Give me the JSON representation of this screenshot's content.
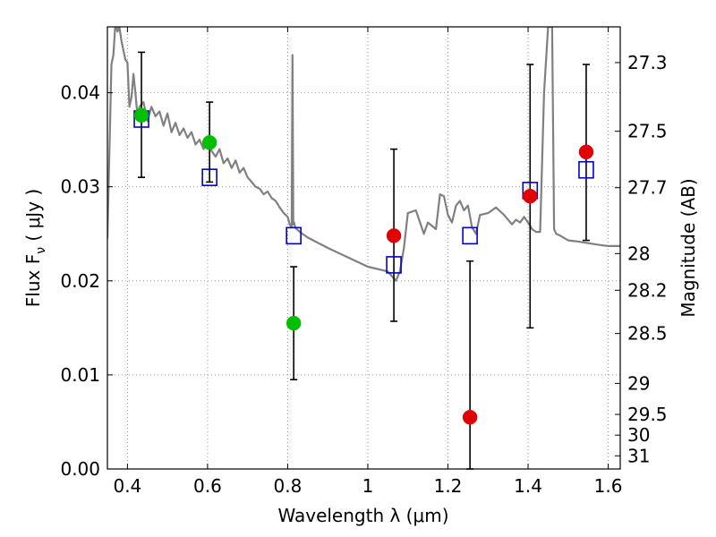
{
  "chart_data": {
    "type": "scatter",
    "xlabel": "Wavelength  λ (μm)",
    "ylabel": "Flux  F",
    "ylabel_sub": "ν",
    "ylabel_unit": " ( μJy )",
    "ylabel_right": "Magnitude (AB)",
    "xlim": [
      0.35,
      1.63
    ],
    "ylim": [
      0.0,
      0.047
    ],
    "grid": true,
    "x_ticks": [
      {
        "value": 0.4,
        "label": "0.4"
      },
      {
        "value": 0.6,
        "label": "0.6"
      },
      {
        "value": 0.8,
        "label": "0.8"
      },
      {
        "value": 1.0,
        "label": "1"
      },
      {
        "value": 1.2,
        "label": "1.2"
      },
      {
        "value": 1.4,
        "label": "1.4"
      },
      {
        "value": 1.6,
        "label": "1.6"
      }
    ],
    "y_ticks": [
      {
        "value": 0.0,
        "label": "0.00"
      },
      {
        "value": 0.01,
        "label": "0.01"
      },
      {
        "value": 0.02,
        "label": "0.02"
      },
      {
        "value": 0.03,
        "label": "0.03"
      },
      {
        "value": 0.04,
        "label": "0.04"
      }
    ],
    "magnitude_ticks": [
      {
        "flux": 0.0432,
        "label": "27.3"
      },
      {
        "flux": 0.0359,
        "label": "27.5"
      },
      {
        "flux": 0.0299,
        "label": "27.7"
      },
      {
        "flux": 0.0229,
        "label": "28"
      },
      {
        "flux": 0.019,
        "label": "28.2"
      },
      {
        "flux": 0.0144,
        "label": "28.5"
      },
      {
        "flux": 0.0091,
        "label": "29"
      },
      {
        "flux": 0.0058,
        "label": "29.5"
      },
      {
        "flux": 0.0036,
        "label": "30"
      },
      {
        "flux": 0.0014,
        "label": "31"
      }
    ],
    "colors": {
      "sed": "#808080",
      "model": "#0000cc",
      "green": "#00bf00",
      "red": "#e00000",
      "errorbar": "#000000",
      "grid": "#999999"
    },
    "sed_curve": {
      "x": [
        0.35,
        0.36,
        0.365,
        0.37,
        0.375,
        0.38,
        0.385,
        0.39,
        0.395,
        0.4,
        0.405,
        0.41,
        0.415,
        0.42,
        0.425,
        0.43,
        0.44,
        0.45,
        0.46,
        0.47,
        0.48,
        0.49,
        0.5,
        0.51,
        0.52,
        0.53,
        0.54,
        0.55,
        0.56,
        0.57,
        0.58,
        0.59,
        0.6,
        0.61,
        0.62,
        0.63,
        0.64,
        0.65,
        0.66,
        0.67,
        0.68,
        0.69,
        0.7,
        0.71,
        0.72,
        0.73,
        0.74,
        0.75,
        0.76,
        0.77,
        0.78,
        0.79,
        0.8,
        0.805,
        0.81,
        0.812,
        0.814,
        0.816,
        0.818,
        0.82,
        0.83,
        0.85,
        0.9,
        0.95,
        1.0,
        1.05,
        1.06,
        1.07,
        1.08,
        1.09,
        1.1,
        1.12,
        1.14,
        1.15,
        1.17,
        1.18,
        1.19,
        1.2,
        1.21,
        1.22,
        1.23,
        1.24,
        1.25,
        1.26,
        1.27,
        1.28,
        1.3,
        1.32,
        1.34,
        1.36,
        1.37,
        1.38,
        1.39,
        1.4,
        1.41,
        1.42,
        1.43,
        1.44,
        1.45,
        1.46,
        1.465,
        1.47,
        1.48,
        1.5,
        1.52,
        1.55,
        1.58,
        1.6,
        1.63
      ],
      "y": [
        0.0245,
        0.043,
        0.044,
        0.0475,
        0.0465,
        0.047,
        0.0455,
        0.0445,
        0.0435,
        0.0432,
        0.0385,
        0.0395,
        0.042,
        0.04,
        0.0375,
        0.0385,
        0.039,
        0.037,
        0.0385,
        0.0375,
        0.038,
        0.0365,
        0.0378,
        0.0358,
        0.0368,
        0.0355,
        0.0362,
        0.0352,
        0.0358,
        0.0345,
        0.035,
        0.034,
        0.0348,
        0.0338,
        0.0332,
        0.034,
        0.0325,
        0.033,
        0.032,
        0.0328,
        0.0315,
        0.032,
        0.031,
        0.0305,
        0.03,
        0.0298,
        0.0292,
        0.0295,
        0.0288,
        0.0285,
        0.0278,
        0.0272,
        0.0268,
        0.026,
        0.0257,
        0.044,
        0.026,
        0.0262,
        0.0258,
        0.0256,
        0.0252,
        0.0246,
        0.0235,
        0.0225,
        0.0215,
        0.021,
        0.0205,
        0.02,
        0.021,
        0.0235,
        0.0272,
        0.0275,
        0.025,
        0.0262,
        0.0255,
        0.0292,
        0.029,
        0.027,
        0.0262,
        0.028,
        0.0285,
        0.0275,
        0.028,
        0.0257,
        0.025,
        0.027,
        0.0272,
        0.0278,
        0.027,
        0.026,
        0.0265,
        0.0262,
        0.0268,
        0.0262,
        0.0255,
        0.0252,
        0.0252,
        0.04,
        0.047,
        0.047,
        0.0255,
        0.025,
        0.0248,
        0.0243,
        0.0242,
        0.024,
        0.0238,
        0.0237,
        0.0237
      ]
    },
    "series": [
      {
        "marker": "open-square",
        "points": [
          {
            "x": 0.435,
            "y": 0.0372
          },
          {
            "x": 0.605,
            "y": 0.031
          },
          {
            "x": 0.815,
            "y": 0.0248
          },
          {
            "x": 1.065,
            "y": 0.0217
          },
          {
            "x": 1.255,
            "y": 0.0248
          },
          {
            "x": 1.405,
            "y": 0.0296
          },
          {
            "x": 1.545,
            "y": 0.0318
          }
        ]
      },
      {
        "marker": "green-circle",
        "points": [
          {
            "x": 0.435,
            "y": 0.0376,
            "lo": 0.031,
            "hi": 0.0443
          },
          {
            "x": 0.605,
            "y": 0.0347,
            "lo": 0.0305,
            "hi": 0.039
          },
          {
            "x": 0.815,
            "y": 0.0155,
            "lo": 0.0095,
            "hi": 0.0215
          }
        ]
      },
      {
        "marker": "red-circle",
        "points": [
          {
            "x": 1.065,
            "y": 0.0248,
            "lo": 0.0157,
            "hi": 0.034
          },
          {
            "x": 1.255,
            "y": 0.0055,
            "lo": 0.0,
            "hi": 0.0221
          },
          {
            "x": 1.405,
            "y": 0.029,
            "lo": 0.015,
            "hi": 0.043
          },
          {
            "x": 1.545,
            "y": 0.0337,
            "lo": 0.0243,
            "hi": 0.043
          }
        ]
      }
    ]
  }
}
